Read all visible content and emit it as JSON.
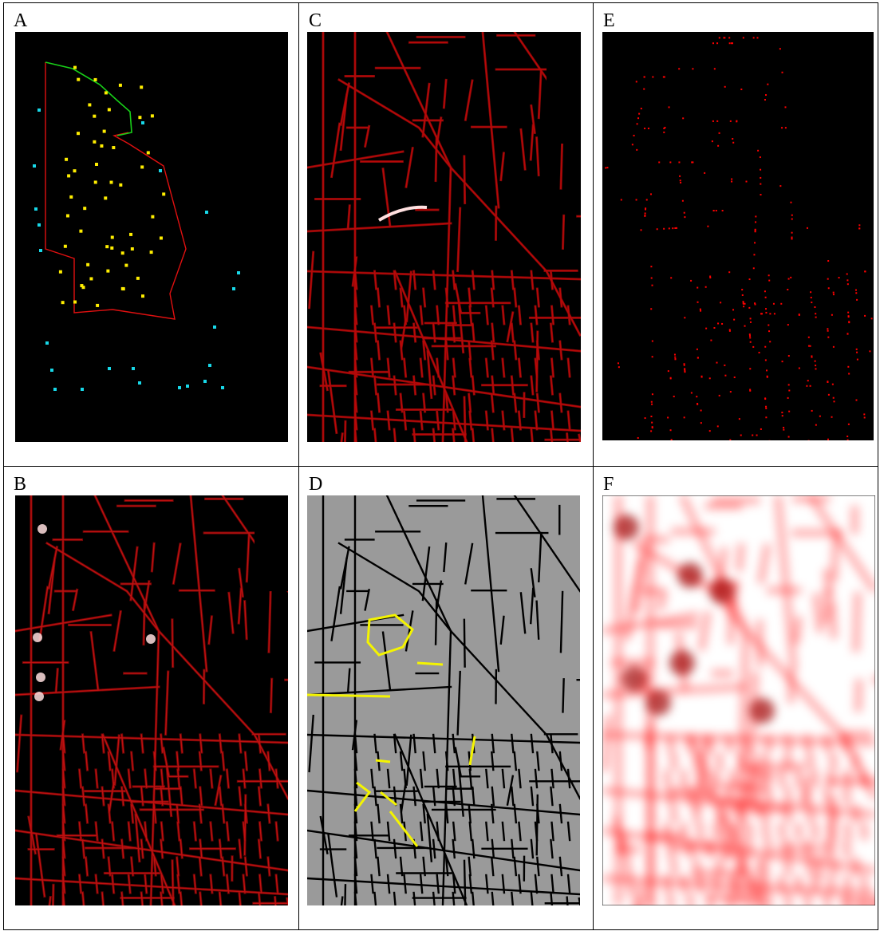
{
  "panels": {
    "a": {
      "label": "A"
    },
    "b": {
      "label": "B"
    },
    "c": {
      "label": "C"
    },
    "d": {
      "label": "D"
    },
    "e": {
      "label": "E"
    },
    "f": {
      "label": "F"
    }
  },
  "colors": {
    "background": "#000000",
    "boundary": "#e01010",
    "boundary_highlight": "#18d018",
    "inside_points": "#ffee00",
    "outside_points": "#18d8e8",
    "street_red": "#b80808",
    "street_gray_bg": "#9a9a9a",
    "street_black": "#000000",
    "street_selected": "#f4f400",
    "density_red": "#ff0000"
  }
}
